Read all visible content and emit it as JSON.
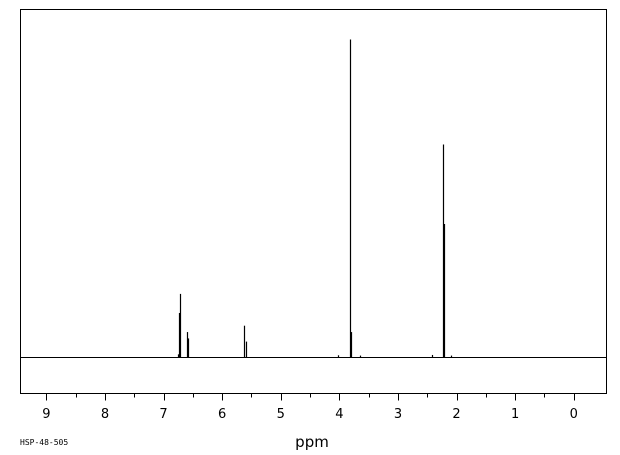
{
  "chart_data": {
    "type": "line",
    "title": "",
    "xlabel": "ppm",
    "ylabel": "",
    "sample_id": "HSP-48-505",
    "xlim": [
      9.45,
      -0.55
    ],
    "ylim": [
      0,
      100
    ],
    "x_reversed": true,
    "grid": false,
    "legend": "none",
    "line_color": "#000000",
    "major_ticks": [
      9,
      8,
      7,
      6,
      5,
      4,
      3,
      2,
      1,
      0
    ],
    "tick_labels": [
      "9",
      "8",
      "7",
      "6",
      "5",
      "4",
      "3",
      "2",
      "1",
      "0"
    ],
    "minor_ticks": [
      9.5,
      8.5,
      7.5,
      6.5,
      5.5,
      4.5,
      3.5,
      2.5,
      1.5,
      0.5
    ],
    "peaks": [
      {
        "ppm": 6.76,
        "height": 1
      },
      {
        "ppm": 6.74,
        "height": 14
      },
      {
        "ppm": 6.72,
        "height": 20
      },
      {
        "ppm": 6.6,
        "height": 8
      },
      {
        "ppm": 6.58,
        "height": 6
      },
      {
        "ppm": 5.62,
        "height": 10
      },
      {
        "ppm": 5.6,
        "height": 5
      },
      {
        "ppm": 4.02,
        "height": 0.7
      },
      {
        "ppm": 3.82,
        "height": 100
      },
      {
        "ppm": 3.8,
        "height": 8
      },
      {
        "ppm": 3.65,
        "height": 0.6
      },
      {
        "ppm": 2.42,
        "height": 0.8
      },
      {
        "ppm": 2.24,
        "height": 67
      },
      {
        "ppm": 2.22,
        "height": 42
      },
      {
        "ppm": 2.1,
        "height": 0.6
      }
    ]
  }
}
